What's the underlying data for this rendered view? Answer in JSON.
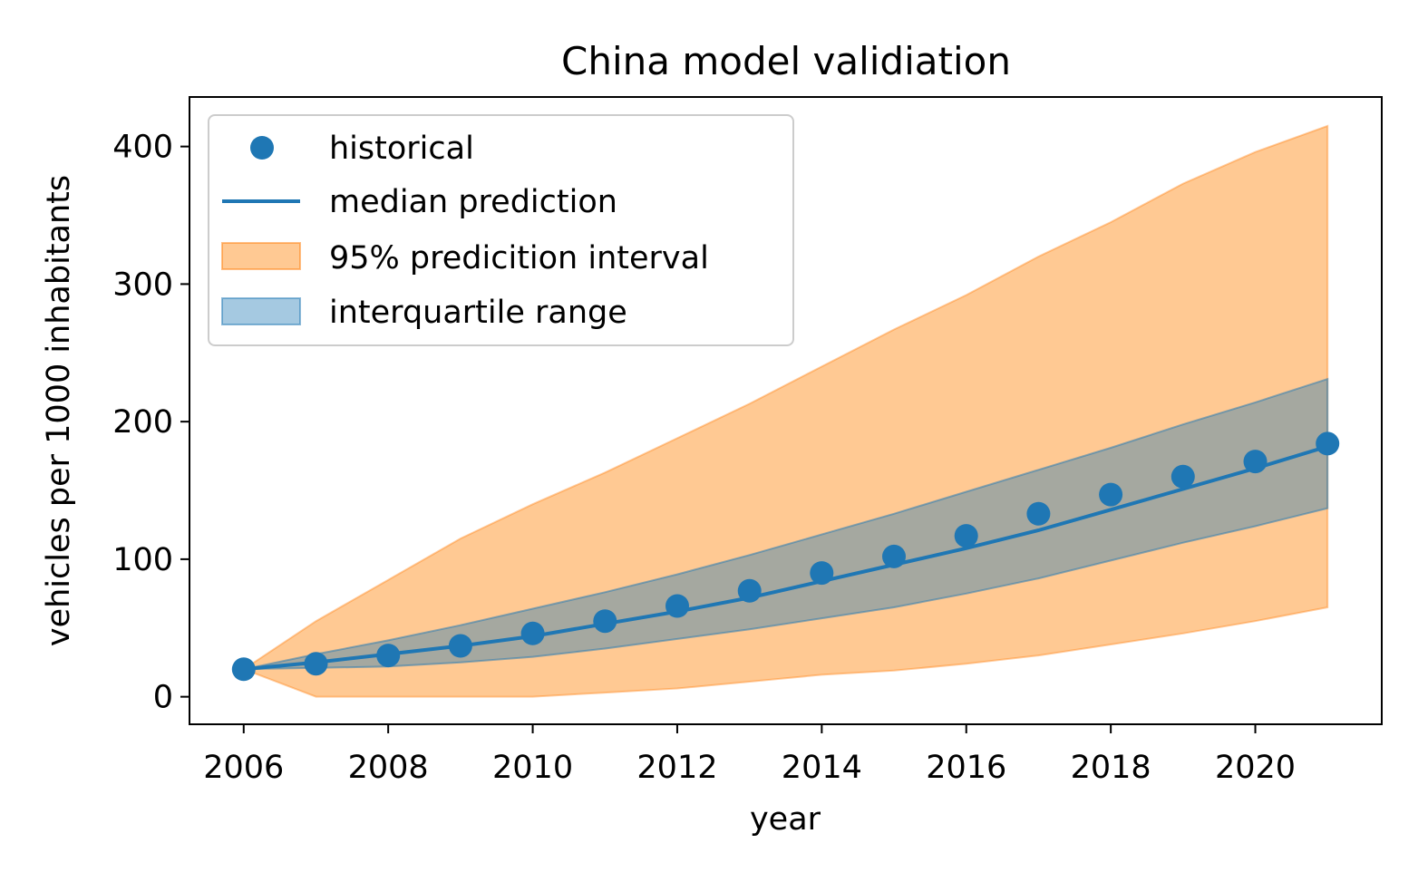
{
  "chart_data": {
    "type": "line",
    "title": "China model validiation",
    "xlabel": "year",
    "ylabel": "vehicles per 1000 inhabitants",
    "xlim": [
      2005.25,
      2021.75
    ],
    "ylim": [
      -20,
      436
    ],
    "xticks": [
      2006,
      2008,
      2010,
      2012,
      2014,
      2016,
      2018,
      2020
    ],
    "yticks": [
      0,
      100,
      200,
      300,
      400
    ],
    "grid": false,
    "legend_position": "upper left",
    "colors": {
      "historical": "#1f77b4",
      "median": "#1f77b4",
      "pi95_fill": "#ffbb78",
      "pi95_edge": "#ff7f0e",
      "iqr_fill": "#1f77b4"
    },
    "x": [
      2006,
      2007,
      2008,
      2009,
      2010,
      2011,
      2012,
      2013,
      2014,
      2015,
      2016,
      2017,
      2018,
      2019,
      2020,
      2021
    ],
    "series": [
      {
        "name": "historical",
        "kind": "scatter",
        "values": [
          20,
          24,
          30,
          37,
          46,
          55,
          66,
          77,
          90,
          102,
          117,
          133,
          147,
          160,
          171,
          184
        ]
      },
      {
        "name": "median prediction",
        "kind": "line",
        "values": [
          20,
          25,
          31,
          37,
          44,
          53,
          62,
          72,
          84,
          96,
          108,
          121,
          136,
          151,
          166,
          182
        ]
      },
      {
        "name": "95% predicition interval",
        "kind": "band",
        "lower": [
          20,
          0,
          0,
          0,
          0,
          3,
          6,
          11,
          16,
          19,
          24,
          30,
          38,
          46,
          55,
          65
        ],
        "upper": [
          20,
          55,
          85,
          115,
          140,
          163,
          188,
          213,
          240,
          267,
          292,
          320,
          345,
          373,
          396,
          415
        ]
      },
      {
        "name": "interquartile range",
        "kind": "band",
        "lower": [
          20,
          21,
          22,
          25,
          29,
          35,
          42,
          49,
          57,
          65,
          75,
          86,
          99,
          112,
          124,
          137
        ],
        "upper": [
          20,
          31,
          41,
          52,
          64,
          76,
          89,
          103,
          118,
          133,
          149,
          165,
          181,
          198,
          214,
          231
        ]
      }
    ]
  }
}
